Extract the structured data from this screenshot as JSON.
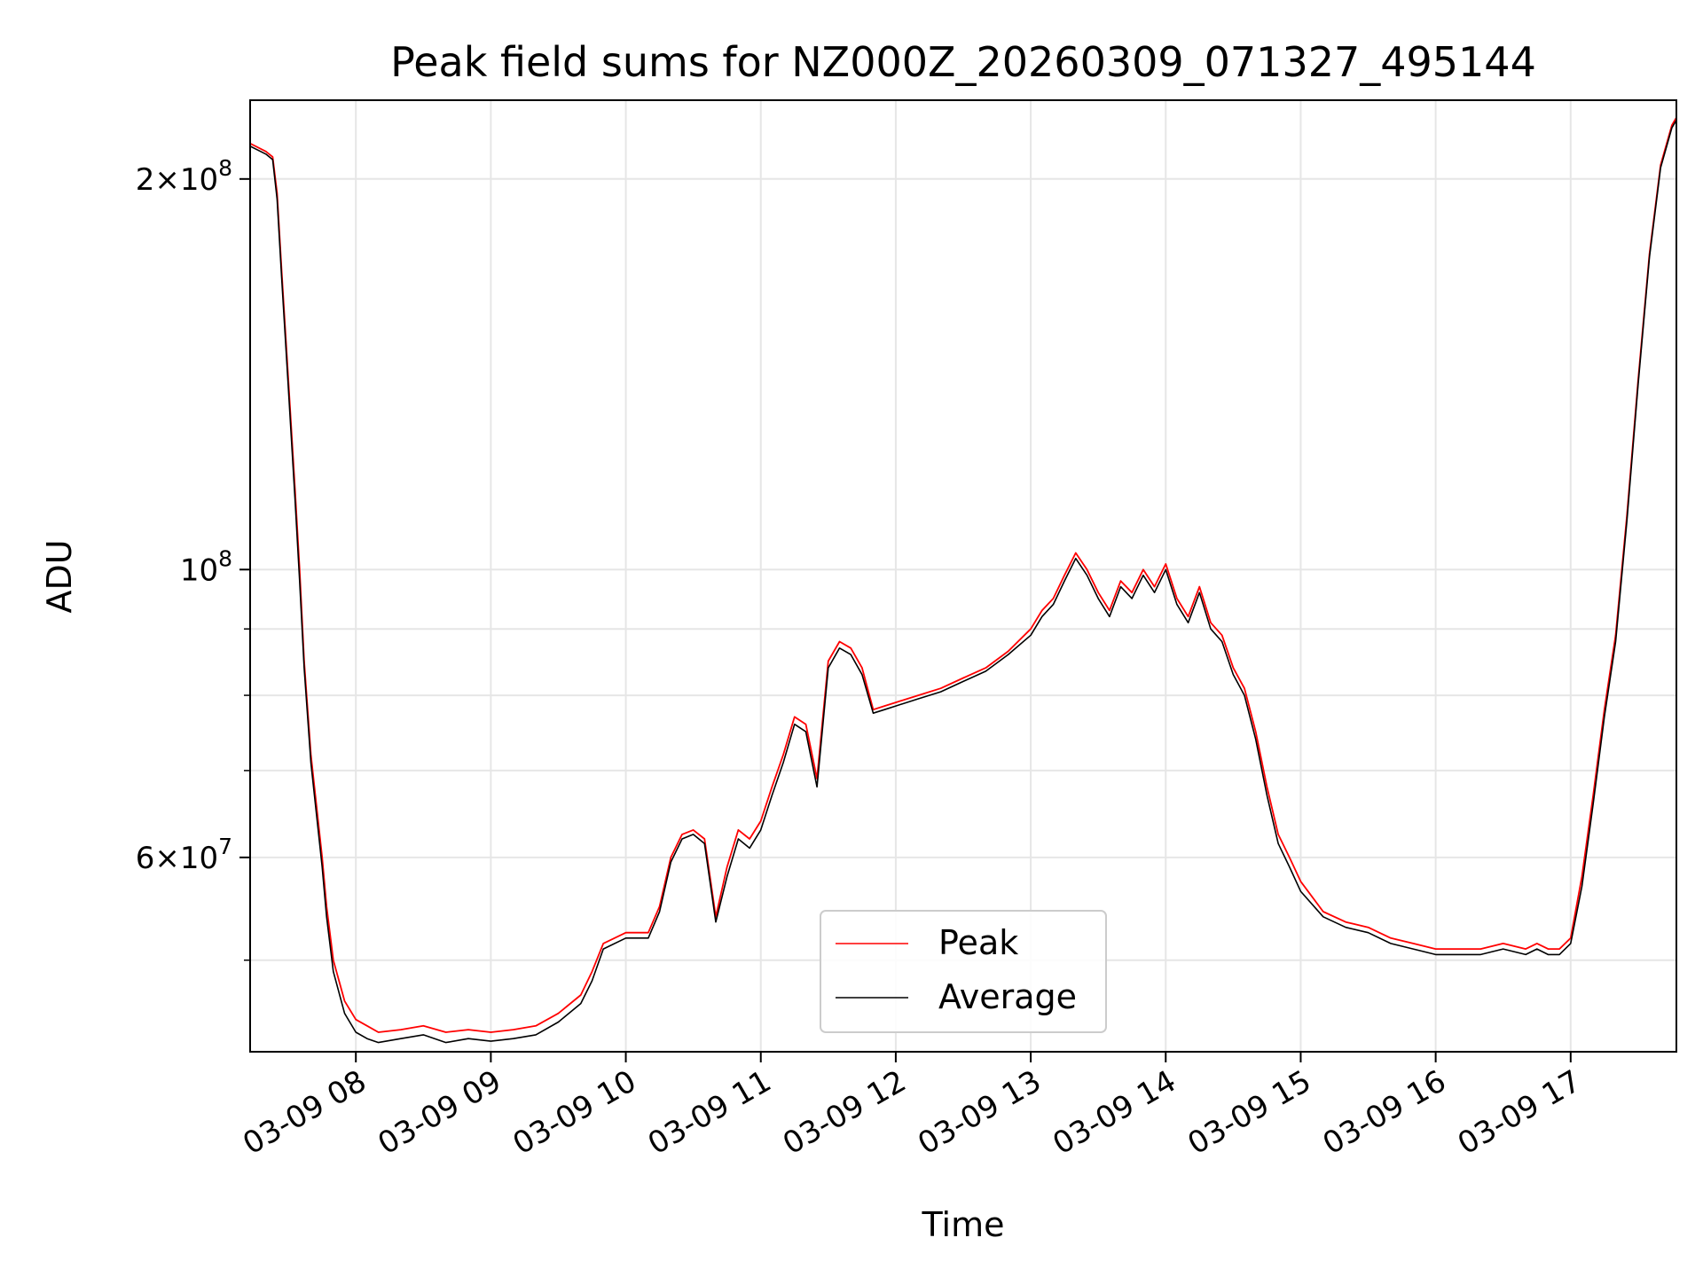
{
  "chart_data": {
    "type": "line",
    "title": "Peak field sums for NZ000Z_20260309_071327_495144",
    "xlabel": "Time",
    "ylabel": "ADU",
    "yscale": "log",
    "grid": true,
    "legend_position": "bottom-center",
    "x_range": [
      "2026-03-09 07:13",
      "2026-03-09 17:47"
    ],
    "ylim": [
      42500000,
      230000000
    ],
    "x_ticks": [
      "03-09 08",
      "03-09 09",
      "03-09 10",
      "03-09 11",
      "03-09 12",
      "03-09 13",
      "03-09 14",
      "03-09 15",
      "03-09 16",
      "03-09 17"
    ],
    "y_ticks": [
      {
        "value": 200000000,
        "base": "2",
        "exp": "8",
        "mult": true
      },
      {
        "value": 100000000,
        "base": "10",
        "exp": "8",
        "mult": false
      },
      {
        "value": 60000000,
        "base": "6",
        "exp": "7",
        "mult": true
      }
    ],
    "y_minor_ticks": [
      50000000,
      70000000,
      80000000,
      90000000
    ],
    "colors": {
      "peak": "#ff0000",
      "average": "#000000"
    },
    "series": [
      {
        "name": "Peak",
        "color": "#ff0000",
        "x": [
          "07:13",
          "07:20",
          "07:23",
          "07:25",
          "07:27",
          "07:30",
          "07:33",
          "07:35",
          "07:37",
          "07:40",
          "07:45",
          "07:47",
          "07:50",
          "07:55",
          "08:00",
          "08:05",
          "08:10",
          "08:20",
          "08:30",
          "08:40",
          "08:50",
          "09:00",
          "09:10",
          "09:20",
          "09:30",
          "09:40",
          "09:45",
          "09:50",
          "10:00",
          "10:10",
          "10:15",
          "10:20",
          "10:25",
          "10:30",
          "10:35",
          "10:40",
          "10:45",
          "10:50",
          "10:55",
          "11:00",
          "11:05",
          "11:10",
          "11:15",
          "11:20",
          "11:25",
          "11:30",
          "11:35",
          "11:40",
          "11:45",
          "11:50",
          "11:55",
          "12:00",
          "12:10",
          "12:20",
          "12:30",
          "12:40",
          "12:50",
          "13:00",
          "13:05",
          "13:10",
          "13:15",
          "13:20",
          "13:25",
          "13:30",
          "13:35",
          "13:40",
          "13:45",
          "13:50",
          "13:55",
          "14:00",
          "14:05",
          "14:10",
          "14:15",
          "14:20",
          "14:25",
          "14:30",
          "14:35",
          "14:40",
          "14:45",
          "14:50",
          "14:55",
          "15:00",
          "15:10",
          "15:20",
          "15:30",
          "15:40",
          "15:50",
          "16:00",
          "16:10",
          "16:20",
          "16:30",
          "16:40",
          "16:45",
          "16:50",
          "16:55",
          "17:00",
          "17:05",
          "17:10",
          "17:15",
          "17:20",
          "17:25",
          "17:30",
          "17:35",
          "17:40",
          "17:45",
          "17:47"
        ],
        "values": [
          213000000,
          210000000,
          208000000,
          195000000,
          170000000,
          140000000,
          115000000,
          100000000,
          85000000,
          72000000,
          60000000,
          55000000,
          50000000,
          46500000,
          45000000,
          44500000,
          44000000,
          44200000,
          44500000,
          44000000,
          44200000,
          44000000,
          44200000,
          44500000,
          45500000,
          47000000,
          49000000,
          51500000,
          52500000,
          52500000,
          55000000,
          60000000,
          62500000,
          63000000,
          62000000,
          54000000,
          59000000,
          63000000,
          62000000,
          64000000,
          68000000,
          72000000,
          77000000,
          76000000,
          69000000,
          85000000,
          88000000,
          87000000,
          84000000,
          78000000,
          78500000,
          79000000,
          80000000,
          81000000,
          82500000,
          84000000,
          86500000,
          90000000,
          93000000,
          95000000,
          99000000,
          103000000,
          100000000,
          96000000,
          93000000,
          98000000,
          96000000,
          100000000,
          97000000,
          101000000,
          95000000,
          92000000,
          97000000,
          91000000,
          89000000,
          84000000,
          81000000,
          75000000,
          68000000,
          62500000,
          60000000,
          57500000,
          54500000,
          53500000,
          53000000,
          52000000,
          51500000,
          51000000,
          51000000,
          51000000,
          51500000,
          51000000,
          51500000,
          51000000,
          51000000,
          52000000,
          58000000,
          67000000,
          78000000,
          89000000,
          110000000,
          140000000,
          175000000,
          205000000,
          220000000,
          223000000
        ]
      },
      {
        "name": "Average",
        "color": "#000000",
        "x": [
          "07:13",
          "07:20",
          "07:23",
          "07:25",
          "07:27",
          "07:30",
          "07:33",
          "07:35",
          "07:37",
          "07:40",
          "07:45",
          "07:47",
          "07:50",
          "07:55",
          "08:00",
          "08:05",
          "08:10",
          "08:20",
          "08:30",
          "08:40",
          "08:50",
          "09:00",
          "09:10",
          "09:20",
          "09:30",
          "09:40",
          "09:45",
          "09:50",
          "10:00",
          "10:10",
          "10:15",
          "10:20",
          "10:25",
          "10:30",
          "10:35",
          "10:40",
          "10:45",
          "10:50",
          "10:55",
          "11:00",
          "11:05",
          "11:10",
          "11:15",
          "11:20",
          "11:25",
          "11:30",
          "11:35",
          "11:40",
          "11:45",
          "11:50",
          "11:55",
          "12:00",
          "12:10",
          "12:20",
          "12:30",
          "12:40",
          "12:50",
          "13:00",
          "13:05",
          "13:10",
          "13:15",
          "13:20",
          "13:25",
          "13:30",
          "13:35",
          "13:40",
          "13:45",
          "13:50",
          "13:55",
          "14:00",
          "14:05",
          "14:10",
          "14:15",
          "14:20",
          "14:25",
          "14:30",
          "14:35",
          "14:40",
          "14:45",
          "14:50",
          "14:55",
          "15:00",
          "15:10",
          "15:20",
          "15:30",
          "15:40",
          "15:50",
          "16:00",
          "16:10",
          "16:20",
          "16:30",
          "16:40",
          "16:45",
          "16:50",
          "16:55",
          "17:00",
          "17:05",
          "17:10",
          "17:15",
          "17:20",
          "17:25",
          "17:30",
          "17:35",
          "17:40",
          "17:45",
          "17:47"
        ],
        "values": [
          212000000,
          209000000,
          207000000,
          193000000,
          168000000,
          138000000,
          113000000,
          98000000,
          84000000,
          71000000,
          59000000,
          54000000,
          49000000,
          45500000,
          44000000,
          43500000,
          43200000,
          43500000,
          43800000,
          43200000,
          43500000,
          43300000,
          43500000,
          43800000,
          44800000,
          46300000,
          48200000,
          51000000,
          52000000,
          52000000,
          54500000,
          59500000,
          62000000,
          62500000,
          61500000,
          53500000,
          58000000,
          62000000,
          61000000,
          63000000,
          67000000,
          71000000,
          76000000,
          75000000,
          68000000,
          84000000,
          87000000,
          86000000,
          83000000,
          77500000,
          78000000,
          78500000,
          79500000,
          80500000,
          82000000,
          83500000,
          86000000,
          89000000,
          92000000,
          94000000,
          98000000,
          102000000,
          99000000,
          95000000,
          92000000,
          97000000,
          95000000,
          99000000,
          96000000,
          100000000,
          94000000,
          91000000,
          96000000,
          90000000,
          88000000,
          83000000,
          80000000,
          74000000,
          67000000,
          61500000,
          59000000,
          56500000,
          54000000,
          53000000,
          52500000,
          51500000,
          51000000,
          50500000,
          50500000,
          50500000,
          51000000,
          50500000,
          51000000,
          50500000,
          50500000,
          51500000,
          57000000,
          66000000,
          77000000,
          88000000,
          109000000,
          139000000,
          174000000,
          204000000,
          219000000,
          222000000
        ]
      }
    ]
  }
}
